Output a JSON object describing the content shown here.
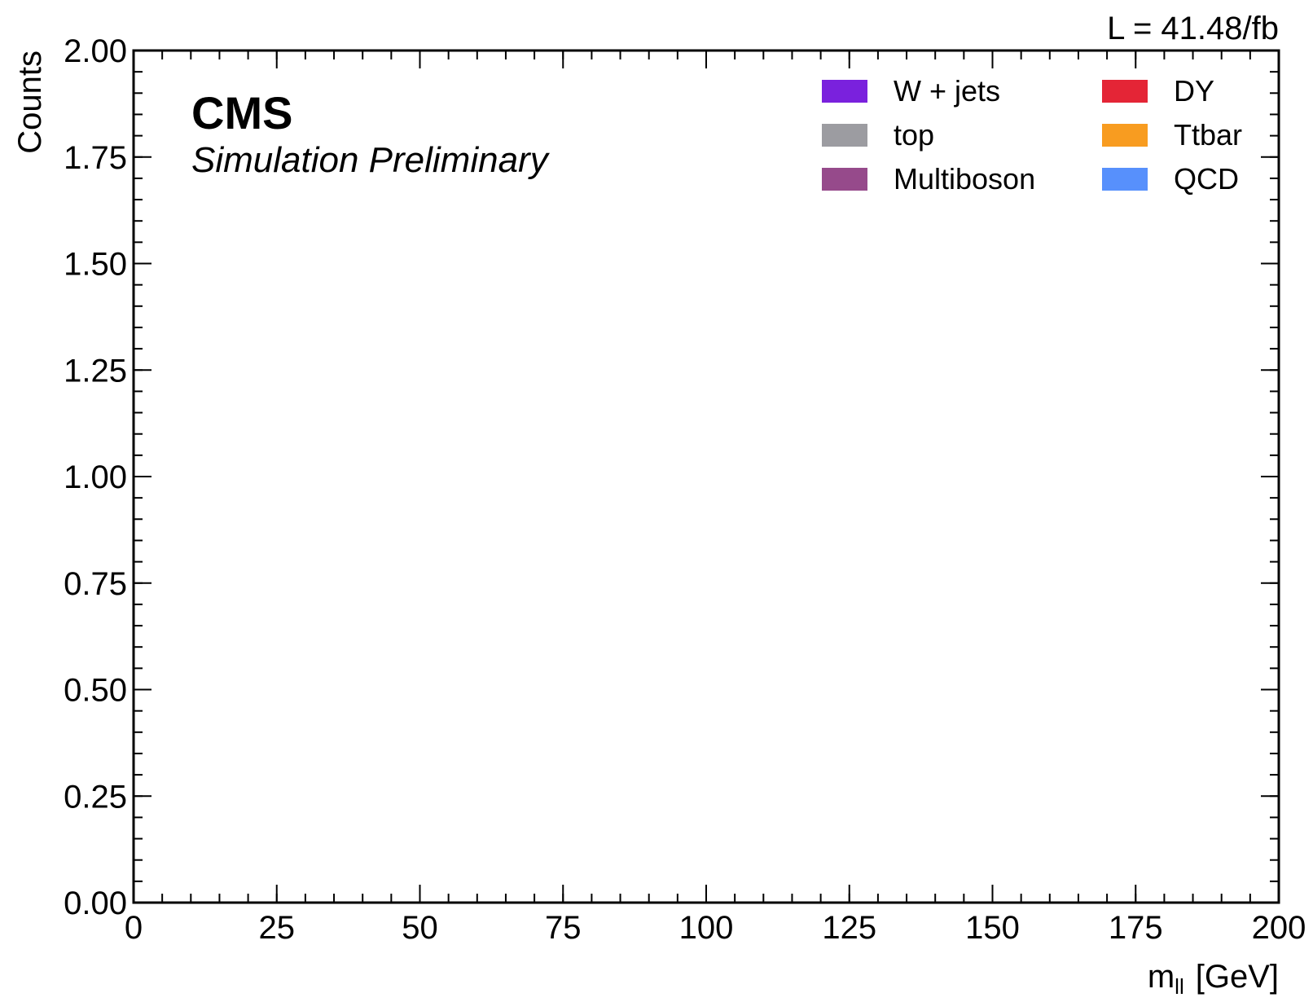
{
  "chart_data": {
    "type": "bar",
    "xlabel_main": "m",
    "xlabel_sub": "ll",
    "xlabel_unit": "[GeV]",
    "ylabel": "Counts",
    "xlim": [
      0,
      200
    ],
    "ylim": [
      0,
      2
    ],
    "x_major_ticks": [
      0,
      25,
      50,
      75,
      100,
      125,
      150,
      175,
      200
    ],
    "x_tick_labels": [
      "0",
      "25",
      "50",
      "75",
      "100",
      "125",
      "150",
      "175",
      "200"
    ],
    "x_minor_step": 5,
    "y_major_ticks": [
      0,
      0.25,
      0.5,
      0.75,
      1.0,
      1.25,
      1.5,
      1.75,
      2.0
    ],
    "y_tick_labels": [
      "0.00",
      "0.25",
      "0.50",
      "0.75",
      "1.00",
      "1.25",
      "1.50",
      "1.75",
      "2.00"
    ],
    "y_minor_step": 0.05,
    "grid": false,
    "experiment_label": "CMS",
    "experiment_sublabel": "Simulation Preliminary",
    "lumi_label": "L = 41.48/fb",
    "legend_position": "top-right",
    "series": [
      {
        "name": "W + jets",
        "color": "#7a21dd",
        "values": []
      },
      {
        "name": "top",
        "color": "#9c9ca1",
        "values": []
      },
      {
        "name": "Multiboson",
        "color": "#964a8b",
        "values": []
      },
      {
        "name": "DY",
        "color": "#e42536",
        "values": []
      },
      {
        "name": "Ttbar",
        "color": "#f89c20",
        "values": []
      },
      {
        "name": "QCD",
        "color": "#5790fc",
        "values": []
      }
    ]
  }
}
